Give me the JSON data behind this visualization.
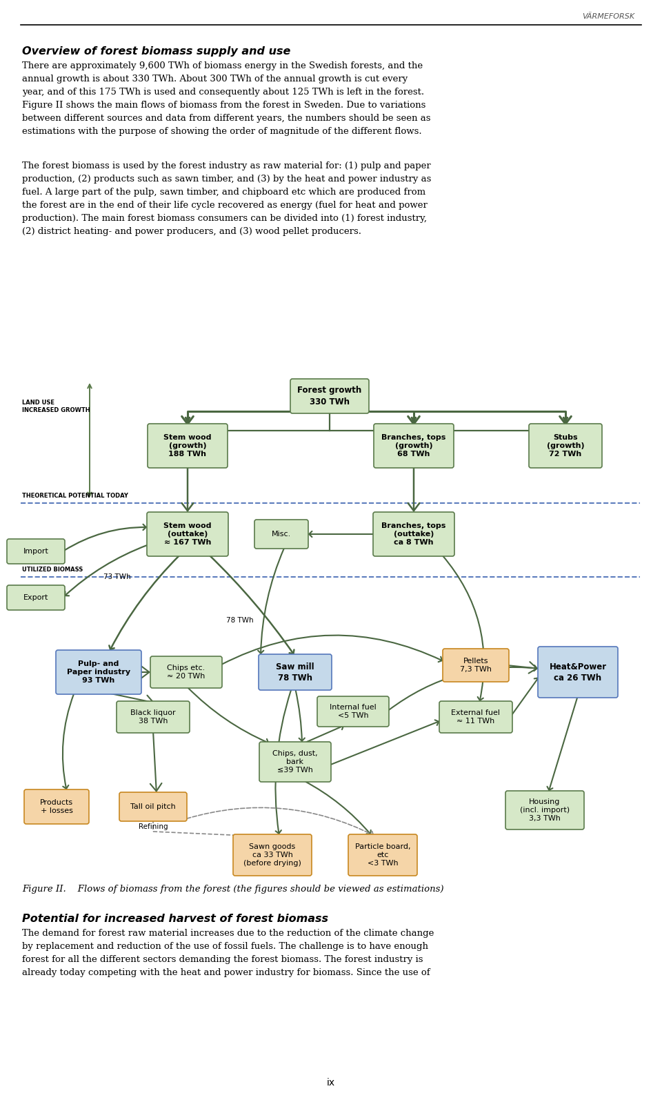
{
  "title_header": "VÄRMEFORSK",
  "section1_title": "Overview of forest biomass supply and use",
  "section2_title": "Potential for increased harvest of forest biomass",
  "figure_caption": "Figure II.    Flows of biomass from the forest (the figures should be viewed as estimations)",
  "page_number": "ix",
  "bg_color": "#ffffff",
  "arrow_color": "#4a6741",
  "dashed_line_color": "#5577bb",
  "box_green_light": "#d6e8c8",
  "box_green_border": "#5a7a4a",
  "box_blue_light": "#c5d9ea",
  "box_blue_border": "#5577bb",
  "box_orange_light": "#f5d5a8",
  "box_orange_border": "#c88820"
}
